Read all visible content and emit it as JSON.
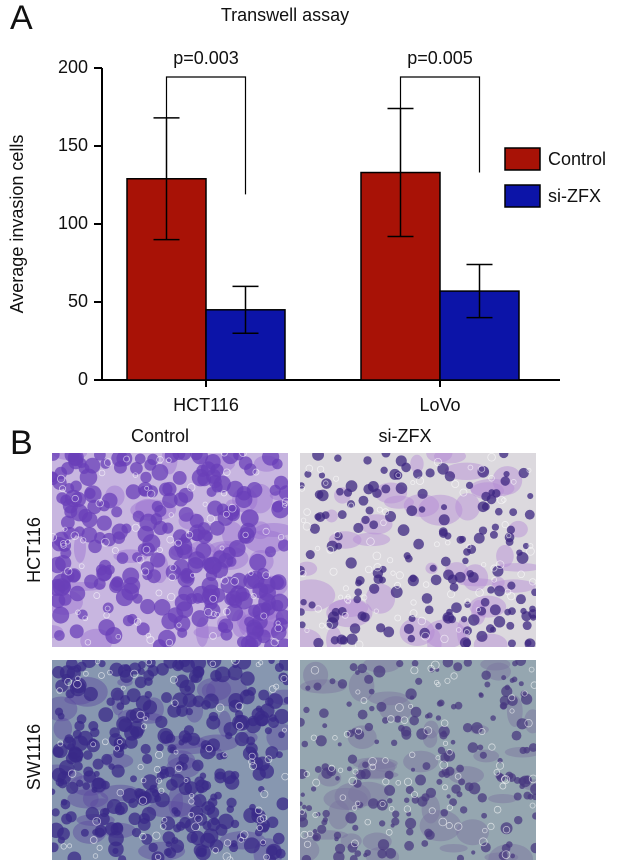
{
  "panel_labels": [
    "A",
    "B"
  ],
  "chart_data": {
    "type": "bar",
    "title": "Transwell assay",
    "y_label": "Average invasion cells",
    "categories": [
      "HCT116",
      "LoVo"
    ],
    "series": [
      {
        "name": "Control",
        "color": "#a81206",
        "values": [
          129,
          133
        ],
        "errors": [
          39,
          41
        ]
      },
      {
        "name": "si-ZFX",
        "color": "#0c14a8",
        "values": [
          45,
          57
        ],
        "errors": [
          15,
          17
        ]
      }
    ],
    "ylim": [
      0,
      200
    ],
    "yticks": [
      0,
      50,
      100,
      150,
      200
    ],
    "legend": "right",
    "annotations": [
      "p=0.003",
      "p=0.005"
    ]
  },
  "images": {
    "columns": [
      "Control",
      "si-ZFX"
    ],
    "rows": [
      "HCT116",
      "SW1116"
    ]
  }
}
